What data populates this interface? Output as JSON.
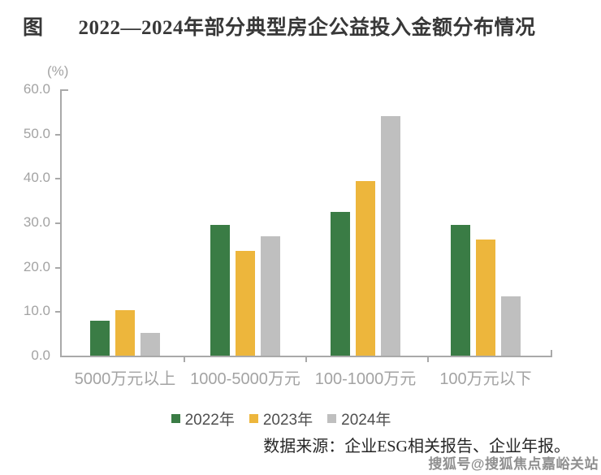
{
  "title": {
    "prefix": "图",
    "text": "2022—2024年部分典型房企公益投入金额分布情况"
  },
  "chart_data": {
    "type": "bar",
    "title": "2022—2024年部分典型房企公益投入金额分布情况",
    "ylabel": "(%)",
    "xlabel": "",
    "ylim": [
      0,
      60
    ],
    "ytick_step": 10,
    "ytick_labels": [
      "60.0",
      "50.0",
      "40.0",
      "30.0",
      "20.0",
      "10.0",
      "0.0"
    ],
    "categories": [
      "5000万元以上",
      "1000-5000万元",
      "100-1000万元",
      "100万元以下"
    ],
    "series": [
      {
        "name": "2022年",
        "color": "#3a7c45",
        "values": [
          7.9,
          29.5,
          32.3,
          29.5
        ]
      },
      {
        "name": "2023年",
        "color": "#edb63c",
        "values": [
          10.3,
          23.6,
          39.3,
          26.2
        ]
      },
      {
        "name": "2024年",
        "color": "#bfbfbf",
        "values": [
          5.2,
          26.8,
          53.9,
          13.3
        ]
      }
    ],
    "legend_position": "bottom",
    "grid": false
  },
  "colors": {
    "axis": "#a9a9a9",
    "tick_label": "#a3a3a3",
    "legend_text": "#4f4f4f",
    "title_text": "#383838",
    "footer_text": "#262626",
    "watermark": "#8f8f8f"
  },
  "footer": {
    "source": "数据来源：企业ESG相关报告、企业年报。"
  },
  "watermark": {
    "text": "搜狐号@搜狐焦点嘉峪关站"
  }
}
